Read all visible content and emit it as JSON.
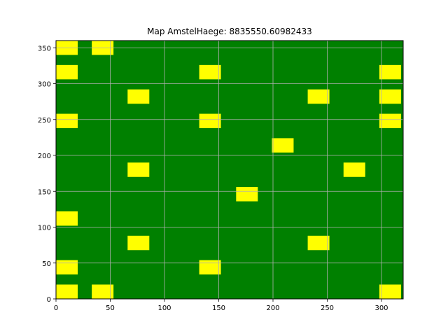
{
  "chart_data": {
    "type": "heatmap",
    "title": "Map AmstelHaege: 8835550.60982433",
    "xlabel": "",
    "ylabel": "",
    "xlim": [
      0,
      320
    ],
    "ylim": [
      0,
      360
    ],
    "xticks": [
      0,
      50,
      100,
      150,
      200,
      250,
      300
    ],
    "yticks": [
      0,
      50,
      100,
      150,
      200,
      250,
      300,
      350
    ],
    "grid": true,
    "background_color": "#008000",
    "house_color": "#ffff00",
    "grid_color": "#b0b0b0",
    "houses": [
      {
        "x": 0,
        "y": 340,
        "w": 20,
        "h": 20
      },
      {
        "x": 33,
        "y": 340,
        "w": 20,
        "h": 20
      },
      {
        "x": 0,
        "y": 306,
        "w": 20,
        "h": 20
      },
      {
        "x": 132,
        "y": 306,
        "w": 20,
        "h": 20
      },
      {
        "x": 298,
        "y": 306,
        "w": 20,
        "h": 20
      },
      {
        "x": 66,
        "y": 272,
        "w": 20,
        "h": 20
      },
      {
        "x": 232,
        "y": 272,
        "w": 20,
        "h": 20
      },
      {
        "x": 298,
        "y": 272,
        "w": 20,
        "h": 20
      },
      {
        "x": 0,
        "y": 238,
        "w": 20,
        "h": 20
      },
      {
        "x": 132,
        "y": 238,
        "w": 20,
        "h": 20
      },
      {
        "x": 298,
        "y": 238,
        "w": 20,
        "h": 20
      },
      {
        "x": 199,
        "y": 204,
        "w": 20,
        "h": 20
      },
      {
        "x": 66,
        "y": 170,
        "w": 20,
        "h": 20
      },
      {
        "x": 265,
        "y": 170,
        "w": 20,
        "h": 20
      },
      {
        "x": 166,
        "y": 136,
        "w": 20,
        "h": 20
      },
      {
        "x": 0,
        "y": 102,
        "w": 20,
        "h": 20
      },
      {
        "x": 66,
        "y": 68,
        "w": 20,
        "h": 20
      },
      {
        "x": 232,
        "y": 68,
        "w": 20,
        "h": 20
      },
      {
        "x": 0,
        "y": 34,
        "w": 20,
        "h": 20
      },
      {
        "x": 132,
        "y": 34,
        "w": 20,
        "h": 20
      },
      {
        "x": 0,
        "y": 0,
        "w": 20,
        "h": 20
      },
      {
        "x": 33,
        "y": 0,
        "w": 20,
        "h": 20
      },
      {
        "x": 298,
        "y": 0,
        "w": 20,
        "h": 20
      }
    ]
  }
}
